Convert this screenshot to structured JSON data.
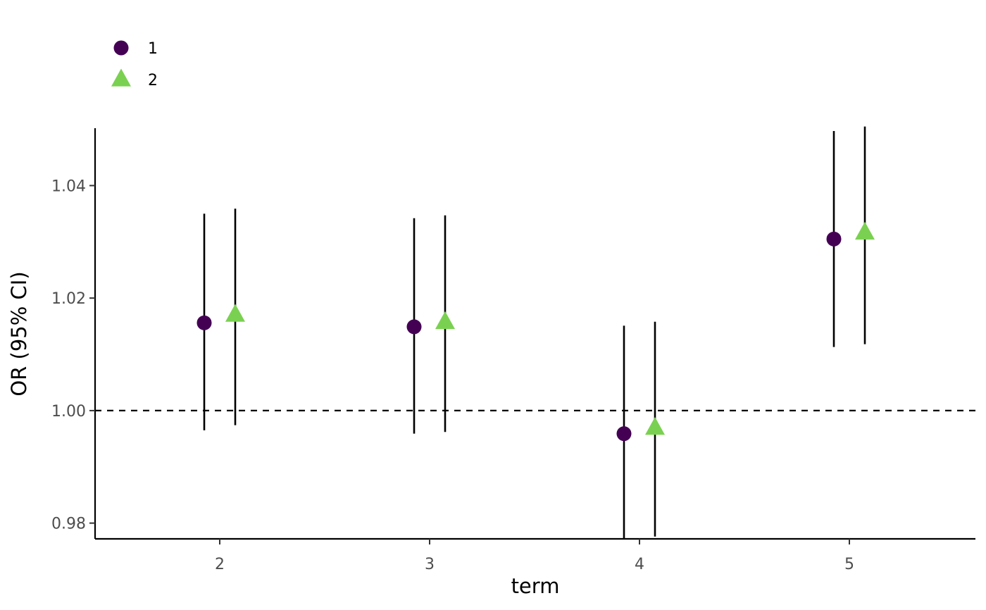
{
  "chart_data": {
    "type": "scatter",
    "title": "",
    "xlabel": "term",
    "ylabel": "OR (95% CI)",
    "categories": [
      "2",
      "3",
      "4",
      "5"
    ],
    "ylim": [
      0.9772,
      1.0502
    ],
    "yticks": [
      "0.98",
      "1.00",
      "1.02",
      "1.04"
    ],
    "ytick_values": [
      0.98,
      1.0,
      1.02,
      1.04
    ],
    "reference_line": 1.0,
    "grid": false,
    "legend_position": "top-left",
    "series": [
      {
        "name": "1",
        "marker": "circle",
        "color": "#440154",
        "values": [
          1.0156,
          1.0149,
          0.9959,
          1.0305
        ],
        "lower": [
          0.9965,
          0.9959,
          0.9772,
          1.0113
        ],
        "upper": [
          1.035,
          1.0342,
          1.0151,
          1.0497
        ]
      },
      {
        "name": "2",
        "marker": "triangle",
        "color": "#7AD151",
        "values": [
          1.017,
          1.0157,
          0.9969,
          1.0316
        ],
        "lower": [
          0.9974,
          0.9962,
          0.9776,
          1.0118
        ],
        "upper": [
          1.0359,
          1.0347,
          1.0158,
          1.0505
        ]
      }
    ]
  }
}
